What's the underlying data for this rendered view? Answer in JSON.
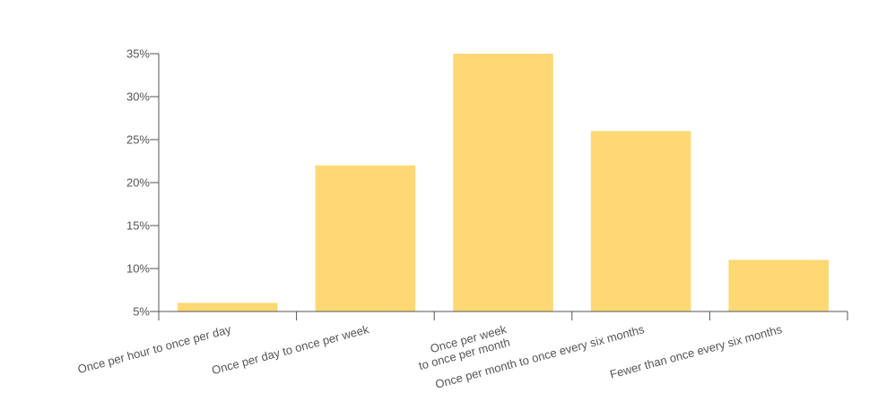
{
  "chart_data": {
    "type": "bar",
    "categories": [
      [
        "Once per hour to once per day"
      ],
      [
        "Once per day to once per week"
      ],
      [
        "Once per week",
        "to once per month"
      ],
      [
        "Once per month to once every six months"
      ],
      [
        "Fewer than once every six months"
      ]
    ],
    "values": [
      6,
      22,
      35,
      26,
      11
    ],
    "ylim": [
      5,
      35
    ],
    "yticks": [
      5,
      10,
      15,
      20,
      25,
      30,
      35
    ],
    "ytick_format": "%",
    "title": "",
    "xlabel": "",
    "ylabel": "",
    "grid": false,
    "colors": {
      "bar": "#FDD874",
      "axis": "#555555",
      "text": "#555555"
    }
  }
}
